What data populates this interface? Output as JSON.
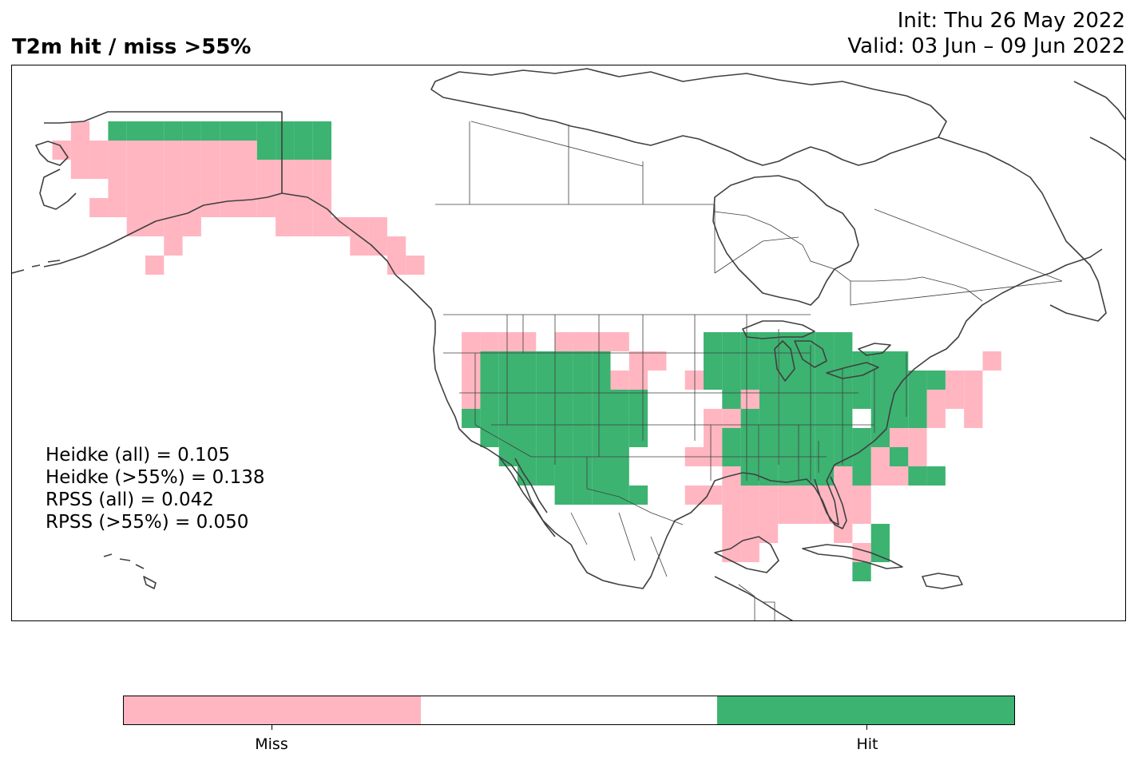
{
  "title": "T2m hit / miss  >55%",
  "init_line": "Init: Thu 26 May 2022",
  "valid_line": "Valid: 03 Jun – 09 Jun 2022",
  "stats": [
    "Heidke (all) = 0.105",
    "Heidke (>55%) = 0.138",
    "RPSS (all) = 0.042",
    "RPSS (>55%) = 0.050"
  ],
  "colors": {
    "miss": "#ffb6c1",
    "neutral": "#ffffff",
    "hit": "#3cb371",
    "coast": "#404040"
  },
  "colorbar": {
    "labels": [
      "Miss",
      "Hit"
    ]
  },
  "grid_origin": {
    "lon0": -175,
    "lat0": 10,
    "cell_deg": 2
  },
  "cells": {
    "miss": [
      [
        -167,
        70
      ],
      [
        -169,
        68
      ],
      [
        -167,
        68
      ],
      [
        -165,
        68
      ],
      [
        -163,
        68
      ],
      [
        -161,
        68
      ],
      [
        -159,
        68
      ],
      [
        -157,
        68
      ],
      [
        -155,
        68
      ],
      [
        -153,
        68
      ],
      [
        -151,
        68
      ],
      [
        -149,
        68
      ],
      [
        -167,
        66
      ],
      [
        -165,
        66
      ],
      [
        -163,
        66
      ],
      [
        -161,
        66
      ],
      [
        -159,
        66
      ],
      [
        -157,
        66
      ],
      [
        -155,
        66
      ],
      [
        -153,
        66
      ],
      [
        -151,
        66
      ],
      [
        -149,
        66
      ],
      [
        -147,
        66
      ],
      [
        -145,
        66
      ],
      [
        -143,
        66
      ],
      [
        -141,
        66
      ],
      [
        -163,
        64
      ],
      [
        -161,
        64
      ],
      [
        -159,
        64
      ],
      [
        -157,
        64
      ],
      [
        -155,
        64
      ],
      [
        -153,
        64
      ],
      [
        -151,
        64
      ],
      [
        -149,
        64
      ],
      [
        -147,
        64
      ],
      [
        -145,
        64
      ],
      [
        -143,
        64
      ],
      [
        -141,
        64
      ],
      [
        -165,
        62
      ],
      [
        -163,
        62
      ],
      [
        -161,
        62
      ],
      [
        -159,
        62
      ],
      [
        -157,
        62
      ],
      [
        -155,
        62
      ],
      [
        -153,
        62
      ],
      [
        -151,
        62
      ],
      [
        -149,
        62
      ],
      [
        -147,
        62
      ],
      [
        -145,
        62
      ],
      [
        -143,
        62
      ],
      [
        -141,
        62
      ],
      [
        -161,
        60
      ],
      [
        -159,
        60
      ],
      [
        -157,
        60
      ],
      [
        -155,
        60
      ],
      [
        -145,
        60
      ],
      [
        -143,
        60
      ],
      [
        -141,
        60
      ],
      [
        -157,
        58
      ],
      [
        -159,
        56
      ],
      [
        -139,
        60
      ],
      [
        -137,
        60
      ],
      [
        -135,
        60
      ],
      [
        -137,
        58
      ],
      [
        -135,
        58
      ],
      [
        -133,
        58
      ],
      [
        -133,
        56
      ],
      [
        -131,
        56
      ],
      [
        -125,
        48
      ],
      [
        -123,
        48
      ],
      [
        -121,
        48
      ],
      [
        -119,
        48
      ],
      [
        -115,
        48
      ],
      [
        -113,
        48
      ],
      [
        -111,
        48
      ],
      [
        -109,
        48
      ],
      [
        -125,
        46
      ],
      [
        -107,
        46
      ],
      [
        -105,
        46
      ],
      [
        -109,
        44
      ],
      [
        -107,
        44
      ],
      [
        -125,
        44
      ],
      [
        -125,
        42
      ],
      [
        -101,
        44
      ],
      [
        -95,
        42
      ],
      [
        -99,
        40
      ],
      [
        -97,
        40
      ],
      [
        -99,
        38
      ],
      [
        -101,
        36
      ],
      [
        -99,
        36
      ],
      [
        -97,
        34
      ],
      [
        -97,
        32
      ],
      [
        -95,
        32
      ],
      [
        -93,
        32
      ],
      [
        -91,
        32
      ],
      [
        -89,
        32
      ],
      [
        -87,
        32
      ],
      [
        -85,
        32
      ],
      [
        -83,
        32
      ],
      [
        -99,
        32
      ],
      [
        -101,
        32
      ],
      [
        -97,
        30
      ],
      [
        -95,
        30
      ],
      [
        -93,
        30
      ],
      [
        -91,
        30
      ],
      [
        -89,
        30
      ],
      [
        -87,
        30
      ],
      [
        -85,
        30
      ],
      [
        -83,
        30
      ],
      [
        -97,
        28
      ],
      [
        -95,
        28
      ],
      [
        -93,
        28
      ],
      [
        -85,
        28
      ],
      [
        -95,
        26
      ],
      [
        -83,
        26
      ],
      [
        -97,
        26
      ],
      [
        -79,
        38
      ],
      [
        -77,
        38
      ],
      [
        -81,
        36
      ],
      [
        -77,
        36
      ],
      [
        -75,
        40
      ],
      [
        -75,
        42
      ],
      [
        -73,
        42
      ],
      [
        -71,
        42
      ],
      [
        -73,
        44
      ],
      [
        -71,
        44
      ],
      [
        -69,
        46
      ],
      [
        -71,
        40
      ],
      [
        -85,
        34
      ],
      [
        -81,
        34
      ],
      [
        -79,
        34
      ]
    ],
    "hit": [
      [
        -163,
        70
      ],
      [
        -161,
        70
      ],
      [
        -159,
        70
      ],
      [
        -157,
        70
      ],
      [
        -155,
        70
      ],
      [
        -153,
        70
      ],
      [
        -151,
        70
      ],
      [
        -149,
        70
      ],
      [
        -147,
        70
      ],
      [
        -145,
        70
      ],
      [
        -143,
        70
      ],
      [
        -141,
        70
      ],
      [
        -147,
        68
      ],
      [
        -145,
        68
      ],
      [
        -143,
        68
      ],
      [
        -141,
        68
      ],
      [
        -113,
        46
      ],
      [
        -111,
        46
      ],
      [
        -123,
        46
      ],
      [
        -121,
        46
      ],
      [
        -119,
        46
      ],
      [
        -117,
        46
      ],
      [
        -115,
        46
      ],
      [
        -123,
        44
      ],
      [
        -121,
        44
      ],
      [
        -119,
        44
      ],
      [
        -117,
        44
      ],
      [
        -115,
        44
      ],
      [
        -113,
        44
      ],
      [
        -111,
        44
      ],
      [
        -123,
        42
      ],
      [
        -121,
        42
      ],
      [
        -119,
        42
      ],
      [
        -117,
        42
      ],
      [
        -115,
        42
      ],
      [
        -113,
        42
      ],
      [
        -111,
        42
      ],
      [
        -109,
        42
      ],
      [
        -107,
        42
      ],
      [
        -125,
        40
      ],
      [
        -123,
        40
      ],
      [
        -121,
        40
      ],
      [
        -119,
        40
      ],
      [
        -117,
        40
      ],
      [
        -115,
        40
      ],
      [
        -113,
        40
      ],
      [
        -111,
        40
      ],
      [
        -109,
        40
      ],
      [
        -107,
        40
      ],
      [
        -123,
        38
      ],
      [
        -121,
        38
      ],
      [
        -119,
        38
      ],
      [
        -117,
        38
      ],
      [
        -115,
        38
      ],
      [
        -113,
        38
      ],
      [
        -111,
        38
      ],
      [
        -109,
        38
      ],
      [
        -107,
        38
      ],
      [
        -121,
        36
      ],
      [
        -119,
        36
      ],
      [
        -117,
        36
      ],
      [
        -115,
        36
      ],
      [
        -113,
        36
      ],
      [
        -111,
        36
      ],
      [
        -109,
        36
      ],
      [
        -119,
        34
      ],
      [
        -117,
        34
      ],
      [
        -115,
        34
      ],
      [
        -113,
        34
      ],
      [
        -111,
        34
      ],
      [
        -109,
        34
      ],
      [
        -115,
        32
      ],
      [
        -113,
        32
      ],
      [
        -111,
        32
      ],
      [
        -109,
        32
      ],
      [
        -107,
        32
      ],
      [
        -99,
        48
      ],
      [
        -97,
        48
      ],
      [
        -95,
        48
      ],
      [
        -93,
        48
      ],
      [
        -91,
        48
      ],
      [
        -89,
        48
      ],
      [
        -87,
        48
      ],
      [
        -85,
        48
      ],
      [
        -99,
        46
      ],
      [
        -97,
        46
      ],
      [
        -95,
        46
      ],
      [
        -93,
        46
      ],
      [
        -91,
        46
      ],
      [
        -89,
        46
      ],
      [
        -87,
        46
      ],
      [
        -85,
        46
      ],
      [
        -83,
        46
      ],
      [
        -81,
        46
      ],
      [
        -79,
        46
      ],
      [
        -99,
        44
      ],
      [
        -97,
        44
      ],
      [
        -95,
        44
      ],
      [
        -93,
        44
      ],
      [
        -91,
        44
      ],
      [
        -89,
        44
      ],
      [
        -87,
        44
      ],
      [
        -85,
        44
      ],
      [
        -83,
        44
      ],
      [
        -81,
        44
      ],
      [
        -79,
        44
      ],
      [
        -77,
        44
      ],
      [
        -75,
        44
      ],
      [
        -97,
        42
      ],
      [
        -93,
        42
      ],
      [
        -91,
        42
      ],
      [
        -89,
        42
      ],
      [
        -87,
        42
      ],
      [
        -85,
        42
      ],
      [
        -83,
        42
      ],
      [
        -81,
        42
      ],
      [
        -79,
        42
      ],
      [
        -77,
        42
      ],
      [
        -95,
        40
      ],
      [
        -93,
        40
      ],
      [
        -91,
        40
      ],
      [
        -89,
        40
      ],
      [
        -87,
        40
      ],
      [
        -85,
        40
      ],
      [
        -81,
        40
      ],
      [
        -79,
        40
      ],
      [
        -77,
        40
      ],
      [
        -97,
        38
      ],
      [
        -95,
        38
      ],
      [
        -93,
        38
      ],
      [
        -91,
        38
      ],
      [
        -89,
        38
      ],
      [
        -87,
        38
      ],
      [
        -85,
        38
      ],
      [
        -83,
        38
      ],
      [
        -81,
        38
      ],
      [
        -97,
        36
      ],
      [
        -95,
        36
      ],
      [
        -93,
        36
      ],
      [
        -91,
        36
      ],
      [
        -89,
        36
      ],
      [
        -87,
        36
      ],
      [
        -85,
        36
      ],
      [
        -83,
        36
      ],
      [
        -79,
        36
      ],
      [
        -95,
        34
      ],
      [
        -93,
        34
      ],
      [
        -91,
        34
      ],
      [
        -89,
        34
      ],
      [
        -87,
        34
      ],
      [
        -83,
        34
      ],
      [
        -77,
        34
      ],
      [
        -75,
        34
      ],
      [
        -81,
        26
      ],
      [
        -81,
        28
      ],
      [
        -83,
        24
      ]
    ]
  }
}
